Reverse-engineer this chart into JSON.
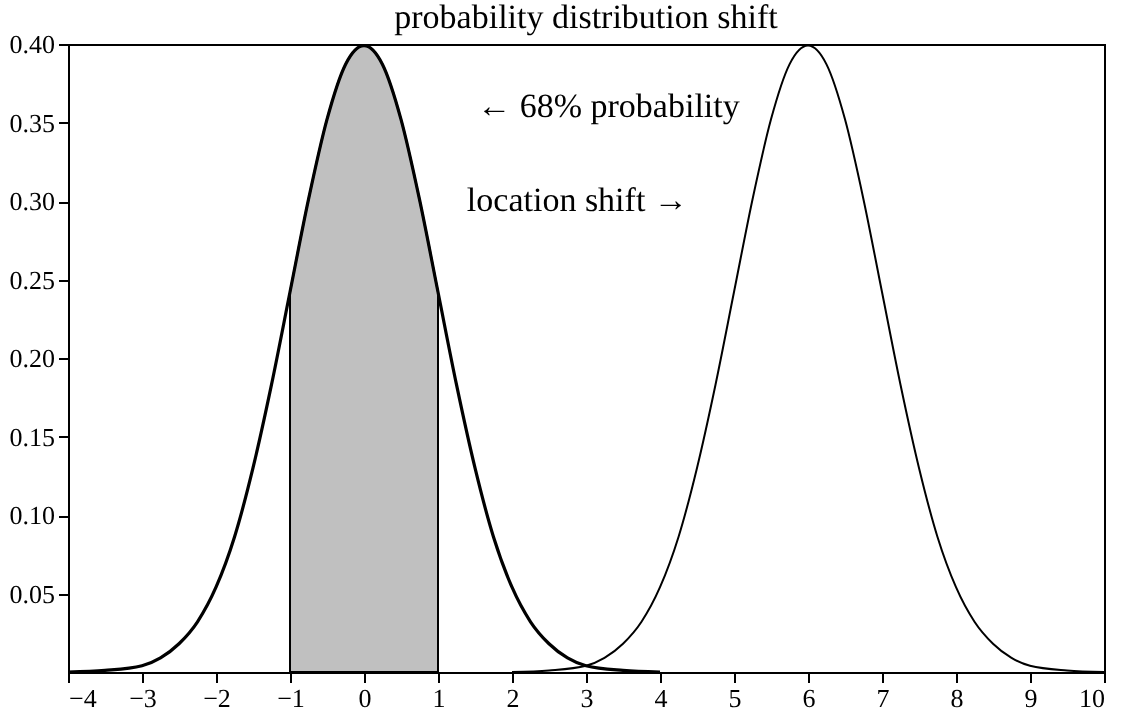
{
  "chart_data": {
    "type": "line",
    "title": "probability distribution shift",
    "xlim": [
      -4,
      10
    ],
    "xticks": [
      -4,
      -3,
      -2,
      -1,
      0,
      1,
      2,
      3,
      4,
      5,
      6,
      7,
      8,
      9,
      10
    ],
    "ylim": [
      0,
      0.4
    ],
    "yticks": [
      0.05,
      {
        "value": 0.1,
        "label": "0.10"
      },
      0.15,
      {
        "value": 0.2,
        "label": "0.20"
      },
      0.25,
      {
        "value": 0.3,
        "label": "0.30"
      },
      0.35,
      {
        "value": 0.4,
        "label": "0.40"
      }
    ],
    "grid": false,
    "marker": "none",
    "line_style": "solid",
    "series": [
      {
        "type": "area",
        "color": "#c0c0c0",
        "x": [
          -1,
          -0.75,
          -0.5,
          -0.25,
          0,
          0.25,
          0.5,
          0.75,
          1
        ],
        "values": [
          0.242,
          0.301,
          0.352,
          0.387,
          0.399,
          0.387,
          0.352,
          0.301,
          0.242
        ]
      },
      {
        "color": "#000000",
        "x": [
          -4,
          -3.5,
          -3,
          -2.75,
          -2.5,
          -2.25,
          -2,
          -1.75,
          -1.5,
          -1.25,
          -1,
          -0.75,
          -0.5,
          -0.25,
          0,
          0.25,
          0.5,
          0.75,
          1,
          1.25,
          1.5,
          1.75,
          2,
          2.25,
          2.5,
          2.75,
          3,
          3.5,
          4
        ],
        "values": [
          0.0,
          0.001,
          0.004,
          0.009,
          0.018,
          0.032,
          0.054,
          0.086,
          0.13,
          0.183,
          0.242,
          0.301,
          0.352,
          0.387,
          0.399,
          0.387,
          0.352,
          0.301,
          0.242,
          0.183,
          0.13,
          0.086,
          0.054,
          0.032,
          0.018,
          0.009,
          0.004,
          0.001,
          0.0
        ]
      },
      {
        "color": "#000000",
        "x": [
          2,
          2.5,
          3,
          3.25,
          3.5,
          3.75,
          4,
          4.25,
          4.5,
          4.75,
          5,
          5.25,
          5.5,
          5.75,
          6,
          6.25,
          6.5,
          6.75,
          7,
          7.25,
          7.5,
          7.75,
          8,
          8.25,
          8.5,
          8.75,
          9,
          9.5,
          10
        ],
        "values": [
          0.0,
          0.001,
          0.004,
          0.009,
          0.018,
          0.032,
          0.054,
          0.086,
          0.13,
          0.183,
          0.242,
          0.301,
          0.352,
          0.387,
          0.399,
          0.387,
          0.352,
          0.301,
          0.242,
          0.183,
          0.13,
          0.086,
          0.054,
          0.032,
          0.018,
          0.009,
          0.004,
          0.001,
          0.0
        ]
      }
    ],
    "annotations": [
      "← 68% probability",
      "location shift →"
    ]
  }
}
